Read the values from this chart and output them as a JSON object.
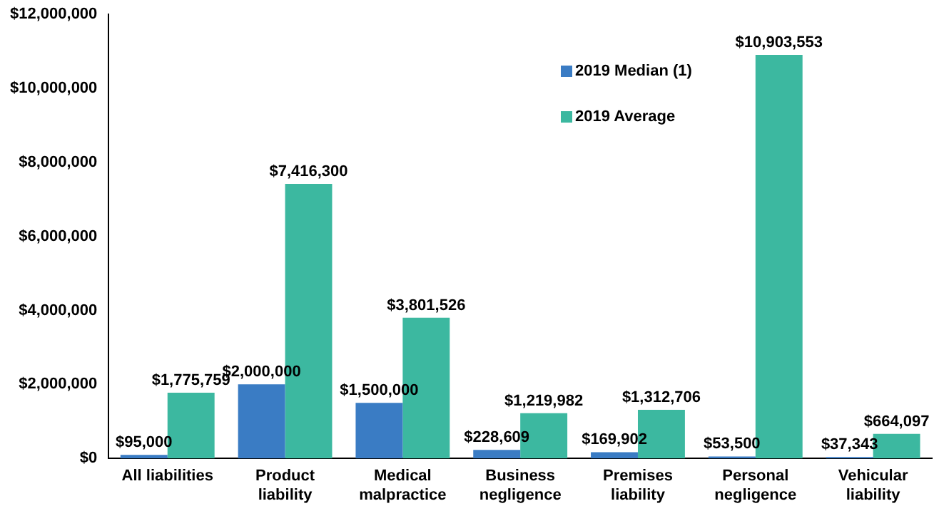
{
  "chart_data": {
    "type": "bar",
    "categories": [
      "All liabilities",
      "Product liability",
      "Medical malpractice",
      "Business negligence",
      "Premises liability",
      "Personal negligence",
      "Vehicular liability"
    ],
    "series": [
      {
        "name": "2019 Median (1)",
        "color": "#3a7cc4",
        "values": [
          95000,
          2000000,
          1500000,
          228609,
          169902,
          53500,
          37343
        ],
        "value_labels": [
          "$95,000",
          "$2,000,000",
          "$1,500,000",
          "$228,609",
          "$169,902",
          "$53,500",
          "$37,343"
        ]
      },
      {
        "name": "2019 Average",
        "color": "#3cb8a0",
        "values": [
          1775759,
          7416300,
          3801526,
          1219982,
          1312706,
          10903553,
          664097
        ],
        "value_labels": [
          "$1,775,759",
          "$7,416,300",
          "$3,801,526",
          "$1,219,982",
          "$1,312,706",
          "$10,903,553",
          "$664,097"
        ]
      }
    ],
    "ylim": [
      0,
      12000000
    ],
    "yticks": [
      {
        "value": 0,
        "label": "$0"
      },
      {
        "value": 2000000,
        "label": "$2,000,000"
      },
      {
        "value": 4000000,
        "label": "$4,000,000"
      },
      {
        "value": 6000000,
        "label": "$6,000,000"
      },
      {
        "value": 8000000,
        "label": "$8,000,000"
      },
      {
        "value": 10000000,
        "label": "$10,000,000"
      },
      {
        "value": 12000000,
        "label": "$12,000,000"
      }
    ],
    "grid": false,
    "legend": "top right"
  }
}
